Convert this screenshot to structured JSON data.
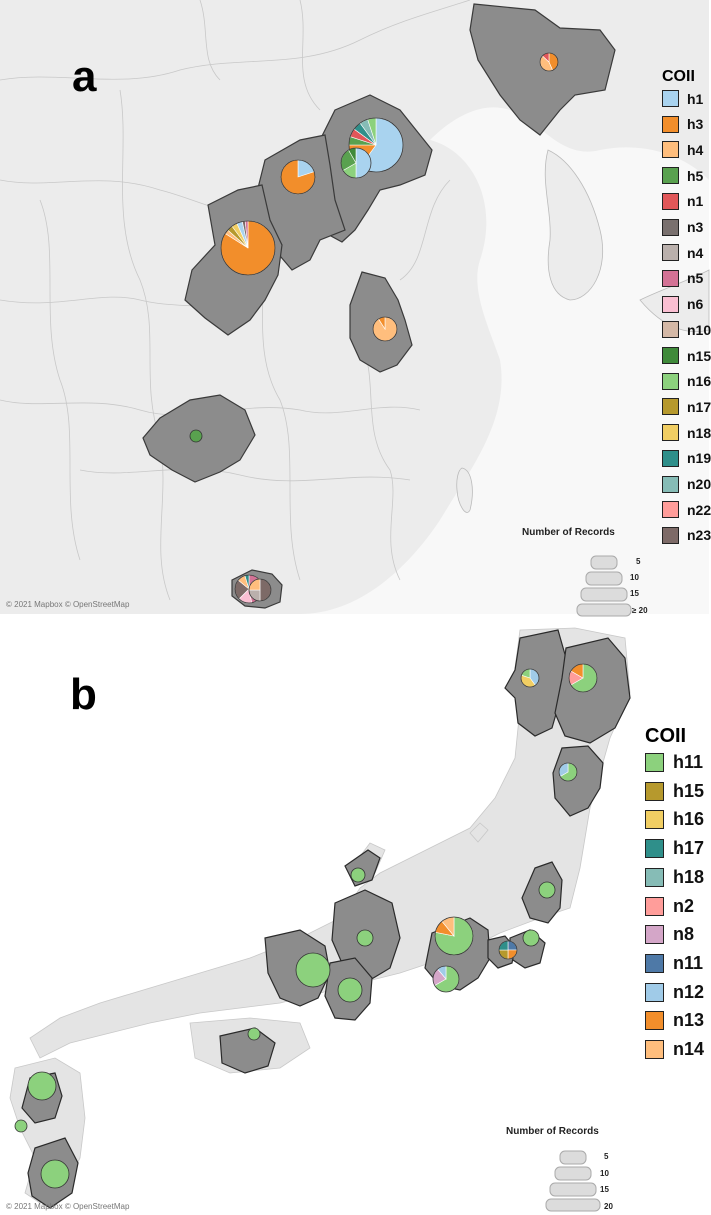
{
  "panel_a": {
    "letter": "a",
    "legend_title": "COII",
    "legend": [
      {
        "label": "h1",
        "color": "#a9d3ef"
      },
      {
        "label": "h3",
        "color": "#f28e2b"
      },
      {
        "label": "h4",
        "color": "#ffbe7d"
      },
      {
        "label": "h5",
        "color": "#59a14f"
      },
      {
        "label": "n1",
        "color": "#e15759"
      },
      {
        "label": "n3",
        "color": "#79706e"
      },
      {
        "label": "n4",
        "color": "#bab0ac"
      },
      {
        "label": "n5",
        "color": "#d37295"
      },
      {
        "label": "n6",
        "color": "#fabfd2"
      },
      {
        "label": "n10",
        "color": "#d4b8a6"
      },
      {
        "label": "n15",
        "color": "#3f8a3a"
      },
      {
        "label": "n16",
        "color": "#8cd17d"
      },
      {
        "label": "n17",
        "color": "#b6992d"
      },
      {
        "label": "n18",
        "color": "#f1ce63"
      },
      {
        "label": "n19",
        "color": "#2f8f8a"
      },
      {
        "label": "n20",
        "color": "#86bcb6"
      },
      {
        "label": "n22",
        "color": "#ff9d9a"
      },
      {
        "label": "n23",
        "color": "#7d6a67"
      }
    ],
    "size_legend": {
      "title": "Number of Records",
      "labels": [
        "5",
        "10",
        "15",
        "≥ 20"
      ]
    },
    "credit": "© 2021 Mapbox © OpenStreetMap"
  },
  "panel_b": {
    "letter": "b",
    "legend_title": "COII",
    "legend": [
      {
        "label": "h11",
        "color": "#8cd17d"
      },
      {
        "label": "h15",
        "color": "#b6992d"
      },
      {
        "label": "h16",
        "color": "#f1ce63"
      },
      {
        "label": "h17",
        "color": "#2f8f8a"
      },
      {
        "label": "h18",
        "color": "#86bcb6"
      },
      {
        "label": "n2",
        "color": "#ff9d9a"
      },
      {
        "label": "n8",
        "color": "#d4a6c8"
      },
      {
        "label": "n11",
        "color": "#4e79a7"
      },
      {
        "label": "n12",
        "color": "#a0cbe8"
      },
      {
        "label": "n13",
        "color": "#f28e2b"
      },
      {
        "label": "n14",
        "color": "#ffbe7d"
      }
    ],
    "size_legend": {
      "title": "Number of Records",
      "labels": [
        "5",
        "10",
        "15",
        "20"
      ]
    },
    "credit": "© 2021 Mapbox © OpenStreetMap"
  }
}
